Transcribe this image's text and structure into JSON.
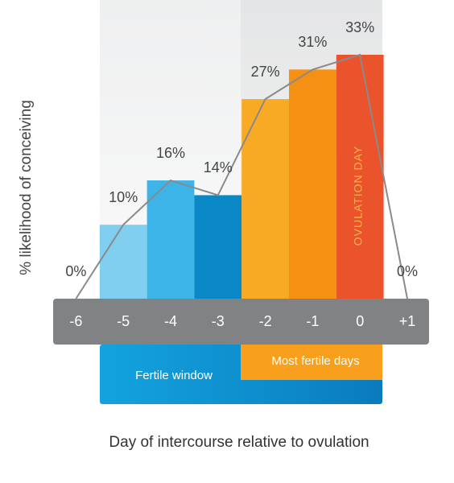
{
  "chart_data": {
    "type": "bar",
    "categories": [
      "-6",
      "-5",
      "-4",
      "-3",
      "-2",
      "-1",
      "0",
      "+1"
    ],
    "values": [
      0,
      10,
      16,
      14,
      27,
      31,
      33,
      0
    ],
    "value_labels": [
      "0%",
      "10%",
      "16%",
      "14%",
      "27%",
      "31%",
      "33%",
      "0%"
    ],
    "colors": [
      "#9a9a9a",
      "#80cff0",
      "#3cb4e8",
      "#0a88c6",
      "#f8aa25",
      "#f69013",
      "#ea532b",
      "#9a9a9a"
    ],
    "line_color": "#8a8a8a",
    "y_label": "% likelihood of conceiving",
    "x_label": "Day of intercourse relative to ovulation",
    "annotations": {
      "fertile_window": "Fertile window",
      "most_fertile_days": "Most fertile days",
      "ovulation_day": "OVULATION DAY"
    }
  }
}
